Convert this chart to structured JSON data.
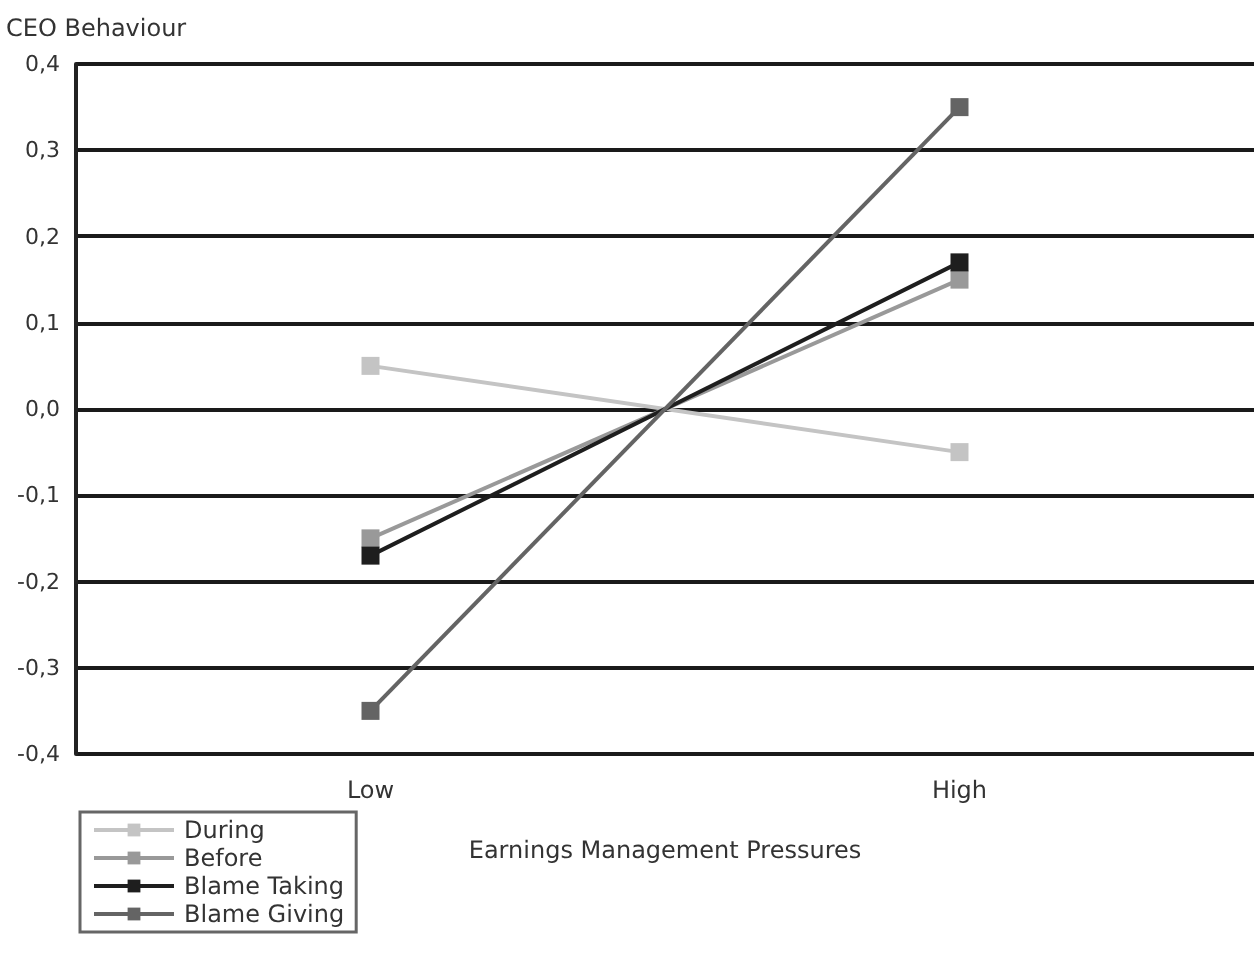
{
  "chart_data": {
    "type": "line",
    "xlabel": "Earnings Management Pressures",
    "ylabel": "CEO Behaviour",
    "categories": [
      "Low",
      "High"
    ],
    "series": [
      {
        "name": "During",
        "color": "#c4c4c4",
        "values": [
          0.05,
          -0.05
        ]
      },
      {
        "name": "Before",
        "color": "#999999",
        "values": [
          -0.15,
          0.15
        ]
      },
      {
        "name": "Blame Taking",
        "color": "#1e1e1e",
        "values": [
          -0.17,
          0.17
        ]
      },
      {
        "name": "Blame Giving",
        "color": "#646464",
        "values": [
          -0.35,
          0.35
        ]
      }
    ],
    "ylim": [
      -0.4,
      0.4
    ],
    "yticks": [
      {
        "value": -0.4,
        "label": "-0,4"
      },
      {
        "value": -0.3,
        "label": "-0,3"
      },
      {
        "value": -0.2,
        "label": "-0,2"
      },
      {
        "value": -0.1,
        "label": "-0,1"
      },
      {
        "value": 0,
        "label": "0,0"
      },
      {
        "value": 0.1,
        "label": "0,1"
      },
      {
        "value": 0.2,
        "label": "0,2"
      },
      {
        "value": 0.3,
        "label": "0,3"
      },
      {
        "value": 0.4,
        "label": "0,4"
      }
    ],
    "grid": "y",
    "legend": "bottom left",
    "marker": "square",
    "line_style": "solid"
  }
}
